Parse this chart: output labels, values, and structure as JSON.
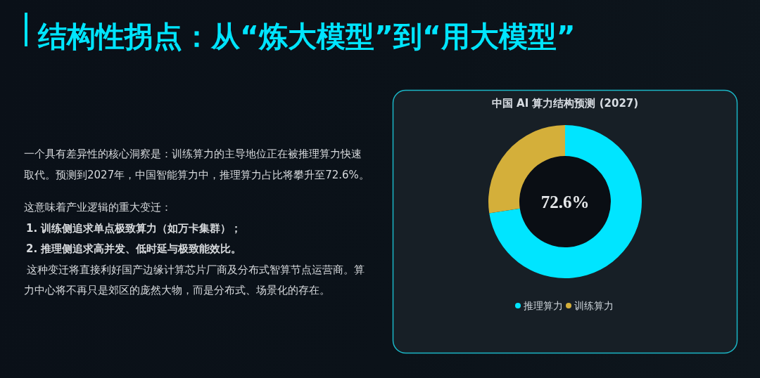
{
  "chart_data": {
    "type": "donut",
    "title": "结构性拐点：从“炼大模型”到“用大模型”",
    "subtitle": "中国 AI 算力结构预测 (2027)",
    "categories": [
      "推理算力",
      "训练算力"
    ],
    "values": [
      72.6,
      27.4
    ],
    "colors": [
      "#00e5ff",
      "#d4af3a"
    ],
    "value_labels": [
      "72.6%",
      null
    ],
    "legend": "bottom",
    "annotations": [
      "一个具有差异性的核心洞察是：训练算力的主导地位正在被推理算力快速取代。预测到2027年，中国智能算力中，推理算力占比将攀升至72.6%。",
      "这意味着产业逻辑的重大变迁：",
      "1. 训练侧追求单点极致算力（如万卡集群）；",
      "2. 推理侧追求高并发、低时延与极致能效比。",
      "这种变迁将直接利好国产边缘计算芯片厂商及分布式智算节点运营商。算力中心将不再只是郊区的庞然大物，而是分布式、场景化的存在。"
    ]
  }
}
